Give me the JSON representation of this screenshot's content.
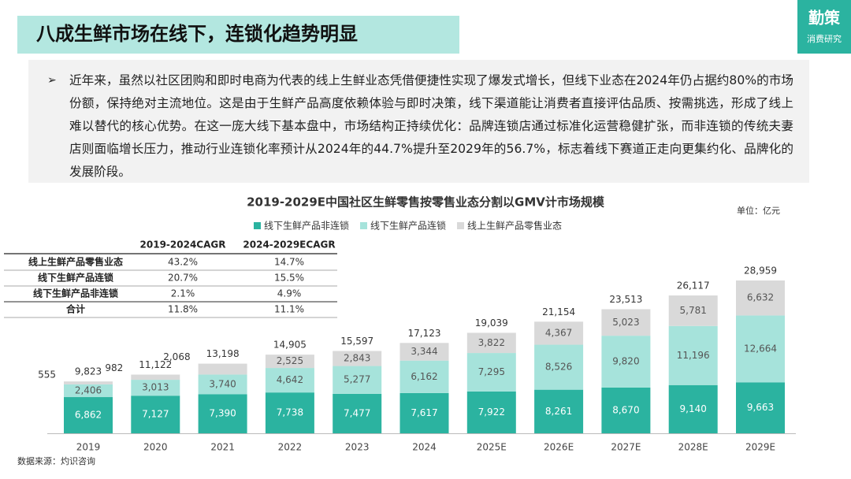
{
  "header": {
    "title": "八成生鲜市场在线下，连锁化趋势明显",
    "logo": "勤策",
    "logo_sub": "消费研究"
  },
  "summary": {
    "bullet": "➢",
    "text": "近年来，虽然以社区团购和即时电商为代表的线上生鲜业态凭借便捷性实现了爆发式增长，但线下业态在2024年仍占据约80%的市场份额，保持绝对主流地位。这是由于生鲜产品高度依赖体验与即时决策，线下渠道能让消费者直接评估品质、按需挑选，形成了线上难以替代的核心优势。在这一庞大线下基本盘中，市场结构正持续优化：品牌连锁店通过标准化运营稳健扩张，而非连锁的传统夫妻店则面临增长压力，推动行业连锁化率预计从2024年的44.7%提升至2029年的56.7%，标志着线下赛道正走向更集约化、品牌化的发展阶段。"
  },
  "chart_data": {
    "type": "bar",
    "stacked": true,
    "title": "2019-2029E中国社区生鲜零售按零售业态分割以GMV计市场规模",
    "unit": "单位：亿元",
    "categories": [
      "2019",
      "2020",
      "2021",
      "2022",
      "2023",
      "2024",
      "2025E",
      "2026E",
      "2027E",
      "2028E",
      "2029E"
    ],
    "series": [
      {
        "name": "线下生鲜产品非连锁",
        "color": "#2bb3a0",
        "values": [
          6862,
          7127,
          7390,
          7738,
          7477,
          7617,
          7922,
          8261,
          8670,
          9140,
          9663
        ],
        "value_labels": [
          "6,862",
          "7,127",
          "7,390",
          "7,738",
          "7,477",
          "7,617",
          "7,922",
          "8,261",
          "8,670",
          "9,140",
          "9,663"
        ]
      },
      {
        "name": "线下生鲜产品连锁",
        "color": "#a6e3db",
        "values": [
          2406,
          3013,
          3740,
          4642,
          5277,
          6162,
          7295,
          8526,
          9820,
          11196,
          12664
        ],
        "value_labels": [
          "2,406",
          "3,013",
          "3,740",
          "4,642",
          "5,277",
          "6,162",
          "7,295",
          "8,526",
          "9,820",
          "11,196",
          "12,664"
        ]
      },
      {
        "name": "线上生鲜产品零售业态",
        "color": "#d9d9d9",
        "values": [
          555,
          982,
          2068,
          2525,
          2843,
          3344,
          3822,
          4367,
          5023,
          5781,
          6632
        ],
        "value_labels": [
          "555",
          "982",
          "2,068",
          "2,525",
          "2,843",
          "3,344",
          "3,822",
          "4,367",
          "5,023",
          "5,781",
          "6,632"
        ]
      }
    ],
    "total_labels": [
      "9,823",
      "11,122",
      "13,198",
      "14,905",
      "15,597",
      "17,123",
      "19,039",
      "21,154",
      "23,513",
      "26,117",
      "28,959"
    ],
    "legend": "top"
  },
  "table": {
    "headers": [
      "2019-2024CAGR",
      "2024-2029ECAGR"
    ],
    "rows": [
      [
        "线上生鲜产品零售业态",
        "43.2%",
        "14.7%"
      ],
      [
        "线下生鲜产品连锁",
        "20.7%",
        "15.5%"
      ],
      [
        "线下生鲜产品非连锁",
        "2.1%",
        "4.9%"
      ],
      [
        "合计",
        "11.8%",
        "11.1%"
      ]
    ]
  },
  "source": "数据来源：灼识咨询"
}
